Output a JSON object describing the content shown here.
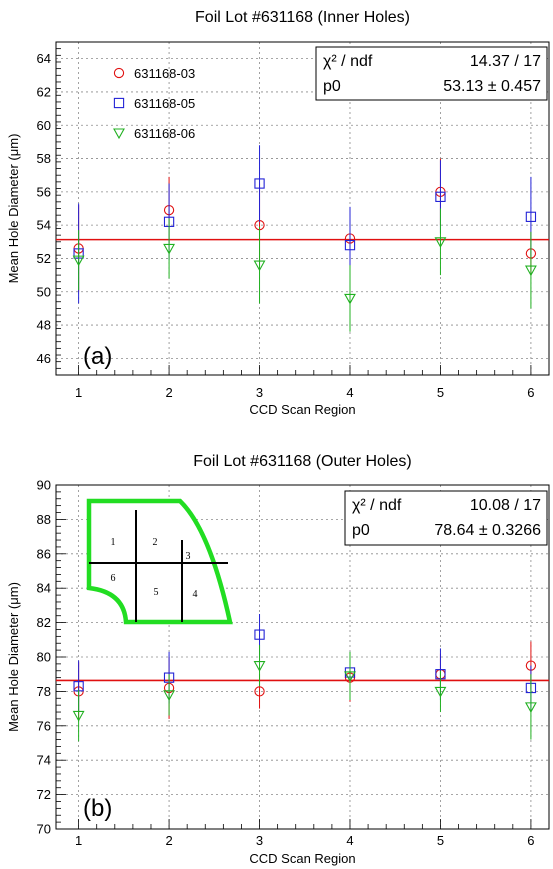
{
  "chart_data": [
    {
      "type": "scatter",
      "title": "Foil Lot #631168 (Inner Holes)",
      "panel_label": "(a)",
      "xlabel": "CCD Scan Region",
      "ylabel": "Mean Hole Diameter (μm)",
      "xlim": [
        0.75,
        6.2
      ],
      "ylim": [
        45,
        65
      ],
      "xticks": [
        1,
        2,
        3,
        4,
        5,
        6
      ],
      "yticks": [
        46,
        48,
        50,
        52,
        54,
        56,
        58,
        60,
        62,
        64
      ],
      "grid": true,
      "legend_position": "top-left",
      "fit": {
        "type": "constant",
        "value": 53.13,
        "color": "#e01010"
      },
      "stats": {
        "rows": [
          {
            "label": "χ² / ndf",
            "value": "14.37 / 17"
          },
          {
            "label": "p0",
            "value": "53.13 ± 0.457"
          }
        ]
      },
      "series": [
        {
          "name": "631168-03",
          "marker": "circle",
          "color": "#e01010",
          "x": [
            1,
            2,
            3,
            4,
            5,
            6
          ],
          "y": [
            52.6,
            54.9,
            54.0,
            53.2,
            56.0,
            52.3
          ],
          "err": [
            2.6,
            2.0,
            2.5,
            1.8,
            2.0,
            1.3
          ]
        },
        {
          "name": "631168-05",
          "marker": "square",
          "color": "#2323d6",
          "x": [
            1,
            2,
            3,
            4,
            5,
            6
          ],
          "y": [
            52.3,
            54.2,
            56.5,
            52.8,
            55.7,
            54.5
          ],
          "err": [
            3.0,
            2.3,
            2.3,
            2.3,
            2.2,
            2.4
          ]
        },
        {
          "name": "631168-06",
          "marker": "triangle-down",
          "color": "#20b020",
          "x": [
            1,
            2,
            3,
            4,
            5,
            6
          ],
          "y": [
            51.9,
            52.6,
            51.6,
            49.6,
            53.0,
            51.3
          ],
          "err": [
            1.8,
            1.8,
            2.3,
            2.0,
            2.0,
            2.3
          ]
        }
      ]
    },
    {
      "type": "scatter",
      "title": "Foil Lot #631168 (Outer Holes)",
      "panel_label": "(b)",
      "xlabel": "CCD Scan Region",
      "ylabel": "Mean Hole Diameter (μm)",
      "xlim": [
        0.75,
        6.2
      ],
      "ylim": [
        70,
        90
      ],
      "xticks": [
        1,
        2,
        3,
        4,
        5,
        6
      ],
      "yticks": [
        70,
        72,
        74,
        76,
        78,
        80,
        82,
        84,
        86,
        88,
        90
      ],
      "grid": true,
      "fit": {
        "type": "constant",
        "value": 78.64,
        "color": "#e01010"
      },
      "stats": {
        "rows": [
          {
            "label": "χ² / ndf",
            "value": "10.08 / 17"
          },
          {
            "label": "p0",
            "value": "78.64 ± 0.3266"
          }
        ]
      },
      "inset": {
        "description": "foil region map",
        "outline_color": "#22dd22",
        "regions": [
          "1",
          "2",
          "3",
          "4",
          "5",
          "6"
        ]
      },
      "series": [
        {
          "name": "631168-03",
          "marker": "circle",
          "color": "#e01010",
          "x": [
            1,
            2,
            3,
            4,
            5,
            6
          ],
          "y": [
            78.0,
            78.2,
            78.0,
            78.8,
            79.0,
            79.5
          ],
          "err": [
            1.7,
            1.8,
            1.0,
            1.4,
            1.2,
            1.4
          ]
        },
        {
          "name": "631168-05",
          "marker": "square",
          "color": "#2323d6",
          "x": [
            1,
            2,
            3,
            4,
            5,
            6
          ],
          "y": [
            78.3,
            78.8,
            81.3,
            79.1,
            79.0,
            78.2
          ],
          "err": [
            1.5,
            1.5,
            1.2,
            1.2,
            1.5,
            1.3
          ]
        },
        {
          "name": "631168-06",
          "marker": "triangle-down",
          "color": "#20b020",
          "x": [
            1,
            2,
            3,
            4,
            5,
            6
          ],
          "y": [
            76.6,
            77.8,
            79.5,
            78.9,
            78.0,
            77.1
          ],
          "err": [
            1.5,
            1.2,
            1.2,
            1.4,
            1.2,
            1.9
          ]
        }
      ]
    }
  ]
}
